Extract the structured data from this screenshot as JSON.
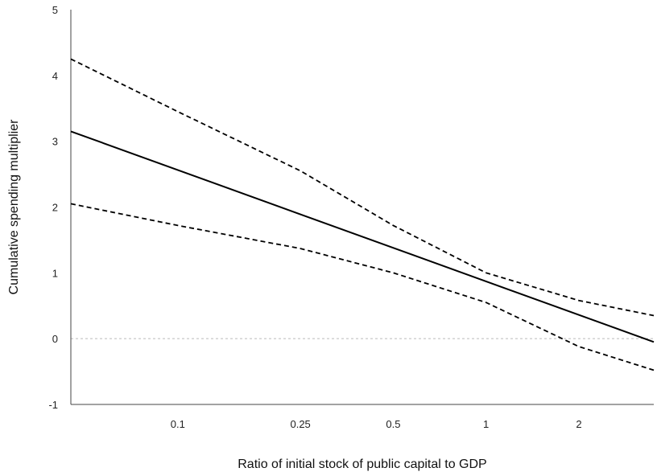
{
  "chart_data": {
    "type": "line",
    "title": "",
    "xlabel": "Ratio of initial stock of public capital to GDP",
    "ylabel": "Cumulative spending multiplier",
    "x_scale": "log",
    "xlim": [
      0.045,
      3.5
    ],
    "ylim": [
      -1,
      5
    ],
    "x_ticks": [
      {
        "value": 0.1,
        "label": "0.1"
      },
      {
        "value": 0.25,
        "label": "0.25"
      },
      {
        "value": 0.5,
        "label": "0.5"
      },
      {
        "value": 1,
        "label": "1"
      },
      {
        "value": 2,
        "label": "2"
      }
    ],
    "y_ticks": [
      {
        "value": 5,
        "label": "5"
      },
      {
        "value": 4,
        "label": "4"
      },
      {
        "value": 3,
        "label": "3"
      },
      {
        "value": 2,
        "label": "2"
      },
      {
        "value": 1,
        "label": "1"
      },
      {
        "value": 0,
        "label": "0"
      },
      {
        "value": -1,
        "label": "-1"
      }
    ],
    "reference_line": {
      "y": 0,
      "style": "dotted",
      "color": "#bbbbbb"
    },
    "series": [
      {
        "style": "solid",
        "color": "#000000",
        "points": [
          [
            0.045,
            3.15
          ],
          [
            3.5,
            -0.05
          ]
        ]
      },
      {
        "style": "dashed",
        "color": "#000000",
        "points": [
          [
            0.045,
            4.25
          ],
          [
            0.1,
            3.45
          ],
          [
            0.25,
            2.55
          ],
          [
            0.5,
            1.72
          ],
          [
            1,
            1.0
          ],
          [
            2,
            0.58
          ],
          [
            3.5,
            0.35
          ]
        ]
      },
      {
        "style": "dashed",
        "color": "#000000",
        "points": [
          [
            0.045,
            2.05
          ],
          [
            0.1,
            1.72
          ],
          [
            0.25,
            1.37
          ],
          [
            0.5,
            1.0
          ],
          [
            1,
            0.55
          ],
          [
            2,
            -0.12
          ],
          [
            3.5,
            -0.48
          ]
        ]
      }
    ]
  }
}
